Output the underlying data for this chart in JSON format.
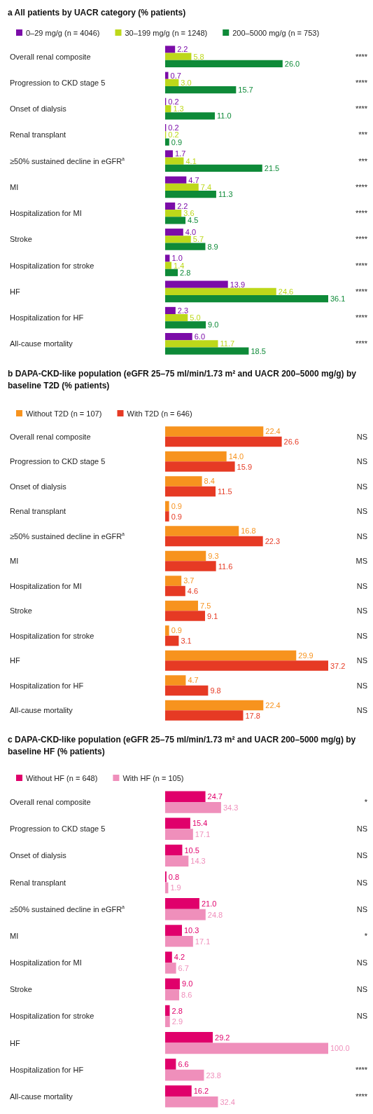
{
  "chart_data": [
    {
      "type": "bar",
      "orientation": "horizontal",
      "title": "a All patients by UACR category (% patients)",
      "legend": "top left",
      "categories": [
        "Overall renal composite",
        "Progression to CKD stage 5",
        "Onset of dialysis",
        "Renal transplant",
        "≥50% sustained decline in eGFR$^{a}$",
        "MI",
        "Hospitalization for MI",
        "Stroke",
        "Hospitalization for stroke",
        "HF",
        "Hospitalization for HF",
        "All-cause mortality"
      ],
      "series": [
        {
          "name": "0–29 mg/g (n = 4046)",
          "color": "#7b0ca8",
          "values": [
            2.2,
            0.7,
            0.2,
            0.2,
            1.7,
            4.7,
            2.2,
            4.0,
            1.0,
            13.9,
            2.3,
            6.0
          ],
          "value_labels": [
            "2.2",
            "0.7",
            "0.2",
            "0.2",
            "1.7",
            "4.7",
            "2.2",
            "4.0",
            "1.0",
            "13.9",
            "2.3",
            "6.0"
          ]
        },
        {
          "name": "30–199 mg/g (n = 1248)",
          "color": "#bdd81a",
          "values": [
            5.8,
            3.0,
            1.3,
            0.2,
            4.1,
            7.4,
            3.6,
            5.7,
            1.4,
            24.6,
            5.0,
            11.7
          ],
          "value_labels": [
            "5.8",
            "3.0",
            "1.3",
            "0.2",
            "4.1",
            "7.4",
            "3.6",
            "5.7",
            "1.4",
            "24.6",
            "5.0",
            "11.7"
          ]
        },
        {
          "name": "200–5000 mg/g (n = 753)",
          "color": "#0e8a38",
          "values": [
            26.0,
            15.7,
            11.0,
            0.9,
            21.5,
            11.3,
            4.5,
            8.9,
            2.8,
            36.1,
            9.0,
            18.5
          ],
          "value_labels": [
            "26.0",
            "15.7",
            "11.0",
            "0.9",
            "21.5",
            "11.3",
            "4.5",
            "8.9",
            "2.8",
            "36.1",
            "9.0",
            "18.5"
          ]
        }
      ],
      "annotations": [
        "****",
        "****",
        "****",
        "***",
        "***",
        "****",
        "****",
        "****",
        "****",
        "****",
        "****",
        "****"
      ]
    },
    {
      "type": "bar",
      "orientation": "horizontal",
      "title": "b DAPA-CKD-like population (eGFR 25–75 ml/min/1.73 m² and UACR 200–5000 mg/g) by baseline T2D (% patients)",
      "legend": "top left",
      "categories": [
        "Overall renal composite",
        "Progression to CKD stage 5",
        "Onset of dialysis",
        "Renal transplant",
        "≥50% sustained decline in eGFR$^{a}$",
        "MI",
        "Hospitalization for MI",
        "Stroke",
        "Hospitalization for stroke",
        "HF",
        "Hospitalization for HF",
        "All-cause mortality"
      ],
      "series": [
        {
          "name": "Without T2D (n = 107)",
          "color": "#f7931e",
          "values": [
            22.4,
            14.0,
            8.4,
            0.9,
            16.8,
            9.3,
            3.7,
            7.5,
            0.9,
            29.9,
            4.7,
            22.4
          ],
          "value_labels": [
            "22.4",
            "14.0",
            "8.4",
            "0.9",
            "16.8",
            "9.3",
            "3.7",
            "7.5",
            "0.9",
            "29.9",
            "4.7",
            "22.4"
          ]
        },
        {
          "name": "With T2D (n = 646)",
          "color": "#e63a24",
          "values": [
            26.6,
            15.9,
            11.5,
            0.9,
            22.3,
            11.6,
            4.6,
            9.1,
            3.1,
            37.2,
            9.8,
            17.8
          ],
          "value_labels": [
            "26.6",
            "15.9",
            "11.5",
            "0.9",
            "22.3",
            "11.6",
            "4.6",
            "9.1",
            "3.1",
            "37.2",
            "9.8",
            "17.8"
          ]
        }
      ],
      "annotations": [
        "NS",
        "NS",
        "NS",
        "NS",
        "NS",
        "MS",
        "NS",
        "NS",
        "NS",
        "NS",
        "NS",
        "NS"
      ]
    },
    {
      "type": "bar",
      "orientation": "horizontal",
      "title": "c DAPA-CKD-like population (eGFR 25–75 ml/min/1.73 m² and UACR 200–5000 mg/g) by baseline HF (% patients)",
      "legend": "top left",
      "categories": [
        "Overall renal composite",
        "Progression to CKD stage 5",
        "Onset of dialysis",
        "Renal transplant",
        "≥50% sustained decline in eGFR$^{a}$",
        "MI",
        "Hospitalization for MI",
        "Stroke",
        "Hospitalization for stroke",
        "HF",
        "Hospitalization for HF",
        "All-cause mortality"
      ],
      "series": [
        {
          "name": "Without HF (n = 648)",
          "color": "#e0006b",
          "values": [
            24.7,
            15.4,
            10.5,
            0.8,
            21.0,
            10.3,
            4.2,
            9.0,
            2.8,
            29.2,
            6.6,
            16.2
          ],
          "value_labels": [
            "24.7",
            "15.4",
            "10.5",
            "0.8",
            "21.0",
            "10.3",
            "4.2",
            "9.0",
            "2.8",
            "29.2",
            "6.6",
            "16.2"
          ]
        },
        {
          "name": "With HF (n = 105)",
          "color": "#ef8fbb",
          "values": [
            34.3,
            17.1,
            14.3,
            1.9,
            24.8,
            17.1,
            6.7,
            8.6,
            2.9,
            100.0,
            23.8,
            32.4
          ],
          "value_labels": [
            "34.3",
            "17.1",
            "14.3",
            "1.9",
            "24.8",
            "17.1",
            "6.7",
            "8.6",
            "2.9",
            "100.0",
            "23.8",
            "32.4"
          ]
        }
      ],
      "annotations": [
        "*",
        "NS",
        "NS",
        "NS",
        "NS",
        "*",
        "NS",
        "NS",
        "NS",
        null,
        "****",
        "****"
      ]
    }
  ]
}
